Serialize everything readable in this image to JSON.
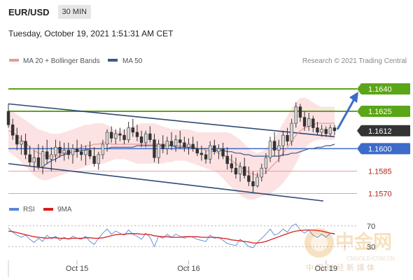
{
  "header": {
    "symbol": "EUR/USD",
    "timeframe": "30 MIN"
  },
  "timestamp": "Tuesday, October 19, 2021 1:51:31 AM CET",
  "copyright": "Research © 2021 Trading Central",
  "watermark": {
    "brand": "中金网",
    "site": "CNGOLD.COM.CN",
    "tagline": "中 国 财 经 新 媒 体"
  },
  "colors": {
    "bull": "#d9d9d9",
    "bear": "#333333",
    "bb_fill": "#fbd8d8",
    "ma20": "#e99a9a",
    "ma50": "#3a5a8a",
    "resistance": "#5ba518",
    "support": "#e8a0a0",
    "pivot": "#3d6bc9",
    "last": "#333333",
    "rsi": "#5b86d6",
    "rsi_ma": "#d81e1e"
  },
  "chart_data": [
    {
      "type": "candlestick",
      "legend": [
        "MA 20 + Bollinger Bands",
        "MA 50"
      ],
      "x_ticks": [
        "Oct 15",
        "Oct 16",
        "Oct 19"
      ],
      "y_levels": [
        {
          "value": 1.164,
          "label": "1.1640",
          "kind": "resistance"
        },
        {
          "value": 1.1625,
          "label": "1.1625",
          "kind": "resistance"
        },
        {
          "value": 1.1612,
          "label": "1.1612",
          "kind": "last"
        },
        {
          "value": 1.16,
          "label": "1.1600",
          "kind": "pivot"
        },
        {
          "value": 1.1585,
          "label": "1.1585",
          "kind": "support"
        },
        {
          "value": 1.157,
          "label": "1.1570",
          "kind": "support"
        }
      ],
      "ylim": [
        1.1566,
        1.1655
      ],
      "candles": [
        [
          1.1625,
          1.163,
          1.1614,
          1.1616
        ],
        [
          1.1616,
          1.162,
          1.1606,
          1.1609
        ],
        [
          1.1609,
          1.1614,
          1.1599,
          1.1603
        ],
        [
          1.1603,
          1.1609,
          1.1596,
          1.1605
        ],
        [
          1.1605,
          1.161,
          1.1593,
          1.1596
        ],
        [
          1.1596,
          1.1602,
          1.1588,
          1.1591
        ],
        [
          1.1591,
          1.1599,
          1.1585,
          1.1594
        ],
        [
          1.1594,
          1.1603,
          1.1586,
          1.1588
        ],
        [
          1.1588,
          1.1602,
          1.1583,
          1.1598
        ],
        [
          1.1598,
          1.1606,
          1.159,
          1.1593
        ],
        [
          1.1593,
          1.1601,
          1.1585,
          1.1596
        ],
        [
          1.1596,
          1.1606,
          1.1591,
          1.1601
        ],
        [
          1.1601,
          1.1605,
          1.1594,
          1.1597
        ],
        [
          1.1597,
          1.1604,
          1.1592,
          1.1599
        ],
        [
          1.1599,
          1.1604,
          1.1593,
          1.1596
        ],
        [
          1.1596,
          1.1603,
          1.159,
          1.16
        ],
        [
          1.16,
          1.1606,
          1.1594,
          1.1598
        ],
        [
          1.1598,
          1.1603,
          1.1592,
          1.1596
        ],
        [
          1.1596,
          1.1602,
          1.1589,
          1.1599
        ],
        [
          1.1599,
          1.1605,
          1.1593,
          1.1595
        ],
        [
          1.1595,
          1.1601,
          1.1588,
          1.159
        ],
        [
          1.159,
          1.1598,
          1.1586,
          1.1596
        ],
        [
          1.1596,
          1.1606,
          1.1593,
          1.1603
        ],
        [
          1.1603,
          1.1613,
          1.1598,
          1.1611
        ],
        [
          1.1611,
          1.1615,
          1.1604,
          1.1607
        ],
        [
          1.1607,
          1.1613,
          1.1603,
          1.161
        ],
        [
          1.161,
          1.1614,
          1.1605,
          1.1609
        ],
        [
          1.1609,
          1.1613,
          1.1603,
          1.1606
        ],
        [
          1.1606,
          1.1618,
          1.1604,
          1.1614
        ],
        [
          1.1614,
          1.162,
          1.1608,
          1.1611
        ],
        [
          1.1611,
          1.1616,
          1.1605,
          1.1608
        ],
        [
          1.1608,
          1.1612,
          1.1601,
          1.1604
        ],
        [
          1.1604,
          1.1612,
          1.1601,
          1.161
        ],
        [
          1.161,
          1.1615,
          1.1604,
          1.1606
        ],
        [
          1.1606,
          1.161,
          1.1591,
          1.1594
        ],
        [
          1.1594,
          1.1606,
          1.159,
          1.1603
        ],
        [
          1.1603,
          1.1609,
          1.1597,
          1.16
        ],
        [
          1.16,
          1.1608,
          1.1596,
          1.1605
        ],
        [
          1.1605,
          1.1611,
          1.1599,
          1.1602
        ],
        [
          1.1602,
          1.1609,
          1.1598,
          1.1606
        ],
        [
          1.1606,
          1.1612,
          1.16,
          1.1604
        ],
        [
          1.1604,
          1.1608,
          1.1598,
          1.1601
        ],
        [
          1.1601,
          1.1607,
          1.1596,
          1.1603
        ],
        [
          1.1603,
          1.1608,
          1.1598,
          1.16
        ],
        [
          1.16,
          1.1605,
          1.1595,
          1.1597
        ],
        [
          1.1597,
          1.1602,
          1.1592,
          1.1596
        ],
        [
          1.1596,
          1.1599,
          1.159,
          1.1593
        ],
        [
          1.1593,
          1.1605,
          1.159,
          1.1602
        ],
        [
          1.1602,
          1.1606,
          1.1596,
          1.1598
        ],
        [
          1.1598,
          1.1603,
          1.1593,
          1.16
        ],
        [
          1.16,
          1.1604,
          1.1593,
          1.1595
        ],
        [
          1.1595,
          1.1601,
          1.1586,
          1.159
        ],
        [
          1.159,
          1.1596,
          1.1584,
          1.1587
        ],
        [
          1.1587,
          1.1594,
          1.158,
          1.1583
        ],
        [
          1.1583,
          1.1591,
          1.1578,
          1.1588
        ],
        [
          1.1588,
          1.1594,
          1.158,
          1.1582
        ],
        [
          1.1582,
          1.1588,
          1.1575,
          1.1578
        ],
        [
          1.1578,
          1.1585,
          1.1571,
          1.1575
        ],
        [
          1.1575,
          1.1584,
          1.1574,
          1.1581
        ],
        [
          1.1581,
          1.159,
          1.1578,
          1.1587
        ],
        [
          1.1587,
          1.1597,
          1.1583,
          1.1594
        ],
        [
          1.1594,
          1.1608,
          1.1591,
          1.1605
        ],
        [
          1.1605,
          1.1611,
          1.1595,
          1.1599
        ],
        [
          1.1599,
          1.1606,
          1.1591,
          1.1602
        ],
        [
          1.1602,
          1.1612,
          1.1595,
          1.1609
        ],
        [
          1.1609,
          1.1614,
          1.1602,
          1.1605
        ],
        [
          1.1605,
          1.162,
          1.1602,
          1.1617
        ],
        [
          1.1617,
          1.1631,
          1.1614,
          1.1628
        ],
        [
          1.1628,
          1.163,
          1.1618,
          1.1621
        ],
        [
          1.1621,
          1.1625,
          1.1612,
          1.1615
        ],
        [
          1.1615,
          1.1624,
          1.1612,
          1.162
        ],
        [
          1.162,
          1.1622,
          1.1611,
          1.1614
        ],
        [
          1.1614,
          1.1618,
          1.1609,
          1.1611
        ],
        [
          1.1611,
          1.1616,
          1.1608,
          1.1613
        ],
        [
          1.1613,
          1.1615,
          1.1608,
          1.161
        ],
        [
          1.161,
          1.1616,
          1.1608,
          1.1614
        ],
        [
          1.1614,
          1.1616,
          1.1609,
          1.1612
        ]
      ],
      "bollinger_upper": [
        1.1626,
        1.1625,
        1.1623,
        1.1621,
        1.1619,
        1.1617,
        1.1615,
        1.1613,
        1.1612,
        1.1611,
        1.161,
        1.161,
        1.161,
        1.1611,
        1.1612,
        1.1613,
        1.1614,
        1.1615,
        1.1616,
        1.1616,
        1.1617,
        1.1617,
        1.1617,
        1.1616,
        1.1614,
        1.1612,
        1.1612,
        1.1613,
        1.1614,
        1.1615,
        1.1616,
        1.1617,
        1.1617,
        1.1617,
        1.1617,
        1.1616,
        1.1615,
        1.1614,
        1.1613,
        1.1613,
        1.1613,
        1.1613,
        1.1613,
        1.1612,
        1.1611,
        1.1611,
        1.1611,
        1.1611,
        1.1611,
        1.1611,
        1.1611,
        1.1611,
        1.161,
        1.1608,
        1.1606,
        1.1603,
        1.16,
        1.1598,
        1.1597,
        1.1598,
        1.16,
        1.1604,
        1.1607,
        1.1612,
        1.1617,
        1.1622,
        1.1627,
        1.1631,
        1.1634,
        1.1634,
        1.1633,
        1.1631,
        1.1629,
        1.1628,
        1.1628,
        1.1628,
        1.1628
      ],
      "bollinger_lower": [
        1.1598,
        1.1596,
        1.1594,
        1.1591,
        1.1588,
        1.1585,
        1.1582,
        1.158,
        1.1579,
        1.1579,
        1.158,
        1.1581,
        1.1582,
        1.1583,
        1.1584,
        1.1585,
        1.1586,
        1.1587,
        1.1588,
        1.1589,
        1.159,
        1.159,
        1.159,
        1.1591,
        1.1592,
        1.1593,
        1.1593,
        1.1593,
        1.1592,
        1.1591,
        1.159,
        1.159,
        1.159,
        1.159,
        1.159,
        1.159,
        1.159,
        1.1591,
        1.1591,
        1.1592,
        1.1592,
        1.1592,
        1.1591,
        1.159,
        1.1589,
        1.1588,
        1.1587,
        1.1586,
        1.1585,
        1.1583,
        1.158,
        1.1577,
        1.1574,
        1.1571,
        1.1569,
        1.1567,
        1.1566,
        1.1566,
        1.1567,
        1.1568,
        1.1569,
        1.157,
        1.1572,
        1.1574,
        1.1577,
        1.1581,
        1.1585,
        1.159,
        1.1596,
        1.16,
        1.1603,
        1.1605,
        1.1606,
        1.1606,
        1.1606,
        1.1606,
        1.1606
      ],
      "ma20": [
        1.1612,
        1.1611,
        1.1609,
        1.1606,
        1.1604,
        1.1601,
        1.1599,
        1.1597,
        1.1596,
        1.1595,
        1.1595,
        1.1595,
        1.1596,
        1.1597,
        1.1598,
        1.1599,
        1.16,
        1.1601,
        1.1602,
        1.1602,
        1.1603,
        1.1603,
        1.1604,
        1.1604,
        1.1603,
        1.1603,
        1.1603,
        1.1603,
        1.1603,
        1.1603,
        1.1603,
        1.1603,
        1.1603,
        1.1603,
        1.1603,
        1.1603,
        1.1603,
        1.1603,
        1.1602,
        1.1602,
        1.1602,
        1.1602,
        1.1602,
        1.1601,
        1.16,
        1.16,
        1.1599,
        1.1598,
        1.1598,
        1.1597,
        1.1596,
        1.1594,
        1.1592,
        1.159,
        1.1588,
        1.1586,
        1.1584,
        1.1583,
        1.1582,
        1.1583,
        1.1584,
        1.1587,
        1.159,
        1.1593,
        1.1597,
        1.1601,
        1.1605,
        1.1609,
        1.1612,
        1.1614,
        1.1615,
        1.1616,
        1.1617,
        1.1617,
        1.1617,
        1.1617,
        1.1617
      ],
      "ma50": [
        null,
        null,
        null,
        null,
        null,
        null,
        null,
        null,
        1.1588,
        1.159,
        1.1592,
        1.1593,
        1.1595,
        1.1596,
        1.1597,
        1.1598,
        1.1598,
        1.1599,
        1.1599,
        1.16,
        1.16,
        1.16,
        1.16,
        1.16,
        1.1601,
        1.1601,
        1.1601,
        1.1601,
        1.1601,
        1.1601,
        1.1602,
        1.1602,
        1.1602,
        1.1602,
        1.1602,
        1.1602,
        1.1602,
        1.1602,
        1.1602,
        1.1601,
        1.1601,
        1.1601,
        1.1601,
        1.1601,
        1.16,
        1.16,
        1.16,
        1.16,
        1.1599,
        1.1599,
        1.1599,
        1.1598,
        1.1598,
        1.1597,
        1.1597,
        1.1596,
        1.1596,
        1.1595,
        1.1595,
        1.1595,
        1.1595,
        1.1595,
        1.1595,
        1.1595,
        1.1596,
        1.1596,
        1.1597,
        1.1597,
        1.1598,
        1.1599,
        1.16,
        1.16,
        1.1601,
        1.1601,
        1.1602,
        1.1602,
        1.1603
      ],
      "upper_channel_ends": [
        1.163,
        1.1608
      ],
      "lower_channel_ends": [
        1.159,
        1.1565
      ],
      "forecast_target": 1.164
    },
    {
      "type": "line",
      "legend": [
        "RSI",
        "9MA"
      ],
      "y_ticks": [
        70,
        30
      ],
      "ylim": [
        10,
        90
      ],
      "series": [
        {
          "name": "RSI",
          "values": [
            66,
            58,
            52,
            48,
            52,
            44,
            38,
            46,
            40,
            52,
            45,
            50,
            42,
            48,
            44,
            50,
            46,
            44,
            50,
            40,
            34,
            46,
            56,
            64,
            54,
            60,
            56,
            52,
            62,
            54,
            50,
            44,
            56,
            48,
            30,
            50,
            46,
            54,
            48,
            54,
            50,
            46,
            50,
            48,
            44,
            42,
            40,
            52,
            46,
            48,
            42,
            36,
            34,
            32,
            44,
            38,
            30,
            28,
            38,
            46,
            54,
            64,
            52,
            56,
            64,
            58,
            70,
            74,
            62,
            56,
            62,
            52,
            48,
            54,
            48,
            56,
            54
          ]
        },
        {
          "name": "9MA",
          "values": [
            60,
            59,
            57,
            55,
            53,
            51,
            49,
            48,
            47,
            46,
            47,
            47,
            46,
            46,
            45,
            46,
            46,
            46,
            47,
            47,
            46,
            46,
            47,
            49,
            51,
            53,
            54,
            54,
            55,
            55,
            55,
            54,
            54,
            53,
            51,
            50,
            49,
            49,
            48,
            48,
            48,
            49,
            49,
            49,
            49,
            48,
            48,
            48,
            48,
            47,
            46,
            45,
            43,
            42,
            41,
            40,
            39,
            37,
            37,
            38,
            40,
            43,
            46,
            49,
            52,
            55,
            58,
            60,
            61,
            62,
            62,
            62,
            61,
            60,
            58,
            56,
            55
          ]
        }
      ]
    }
  ]
}
